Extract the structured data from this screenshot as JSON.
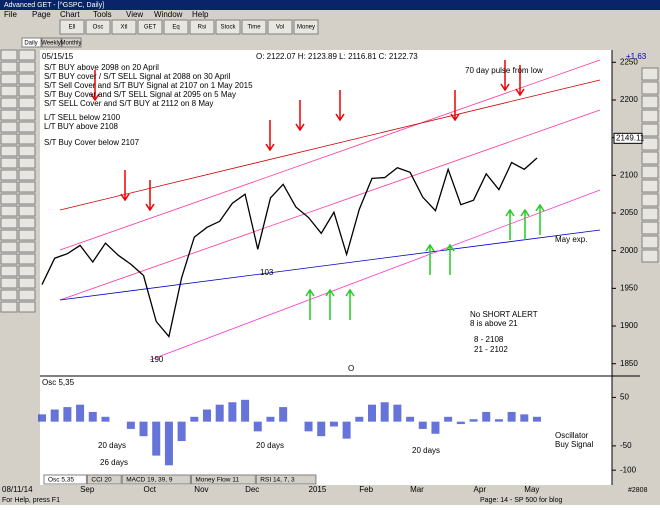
{
  "window": {
    "title": "Advanced GET - [^GSPC, Daily]",
    "menu": [
      "File",
      "Page",
      "Chart",
      "Tools",
      "View",
      "Window",
      "Help"
    ]
  },
  "toolbar": [
    "Ell",
    "Osc",
    "Xtl",
    "GET",
    "Eq",
    "Rsi",
    "Stock",
    "Time",
    "Vol",
    "Money"
  ],
  "tabs": [
    "Daily",
    "Weekly",
    "Monthly"
  ],
  "header": {
    "date": "05/15/15",
    "ohlc": "O: 2122.07  H: 2123.89  L: 2116.81  C: 2122.73",
    "change": "+1.63"
  },
  "chart_data": [
    {
      "type": "line",
      "color": "#000000",
      "categories": [
        "08/11/14",
        null,
        null,
        "Sep",
        null,
        null,
        null,
        null,
        "Oct",
        null,
        null,
        null,
        "Nov",
        null,
        null,
        null,
        "Dec",
        null,
        null,
        null,
        null,
        "2015",
        null,
        null,
        null,
        "Feb",
        null,
        null,
        null,
        "Mar",
        null,
        null,
        null,
        null,
        "Apr",
        null,
        null,
        null,
        "May",
        null
      ],
      "values": [
        1955,
        1990,
        1996,
        2007,
        1985,
        2010,
        1994,
        1982,
        1967,
        1906,
        1886,
        1964,
        2018,
        2031,
        2039,
        2063,
        2075,
        2002,
        2070,
        2088,
        2058,
        2044,
        2023,
        2051,
        1995,
        2055,
        2096,
        2097,
        2110,
        2104,
        2071,
        2053,
        2108,
        2061,
        2067,
        2102,
        2081,
        2117,
        2108,
        2123
      ],
      "ylim": [
        1835,
        2265
      ],
      "yticks": [
        1850,
        1900,
        1950,
        2000,
        2050,
        2100,
        2150,
        2200,
        2250
      ],
      "marker": 2149.11
    },
    {
      "type": "bar",
      "title": "Osc 5,35",
      "color": "#3344cc",
      "values": [
        15,
        25,
        30,
        35,
        20,
        10,
        0,
        -15,
        -30,
        -70,
        -90,
        -40,
        10,
        25,
        35,
        40,
        45,
        -20,
        10,
        30,
        0,
        -20,
        -30,
        -10,
        -35,
        10,
        35,
        40,
        35,
        10,
        -15,
        -25,
        10,
        -5,
        5,
        20,
        5,
        20,
        15,
        10
      ],
      "ylim": [
        -110,
        90
      ],
      "yticks": [
        50,
        -50,
        -100
      ]
    }
  ],
  "annotations": [
    "S/T BUY above 2098 on 20 April",
    "S/T BUY cover / S/T SELL Signal at 2088 on 30 April",
    "S/T Sell Cover and S/T BUY Signal at 2107 on 1 May 2015",
    "S/T Buy Cover and S/T SELL Signal at 2095 on 5 May",
    "S/T SELL Cover and S/T BUY at 2112 on 8 May",
    "L/T SELL below 2100",
    "L/T BUY above 2108",
    "S/T Buy Cover below 2107",
    "70 day pulse from low",
    "May exp.",
    "No SHORT ALERT",
    "8 is above 21",
    "8   - 2108",
    "21 - 2102",
    "103",
    "190",
    "O"
  ],
  "osc_annotations": [
    "20 days",
    "26 days",
    "20 days",
    "20 days",
    "Oscillator",
    "Buy Signal"
  ],
  "indicator_tabs": [
    "Osc 5,35",
    "CCI 20",
    "MACD 19, 39, 9",
    "Money Flow 11",
    "RSI 14, 7, 3"
  ],
  "status": {
    "help": "For Help, press F1",
    "page": "Page: 14 - SP 500 for blog",
    "bar": "#2808"
  }
}
